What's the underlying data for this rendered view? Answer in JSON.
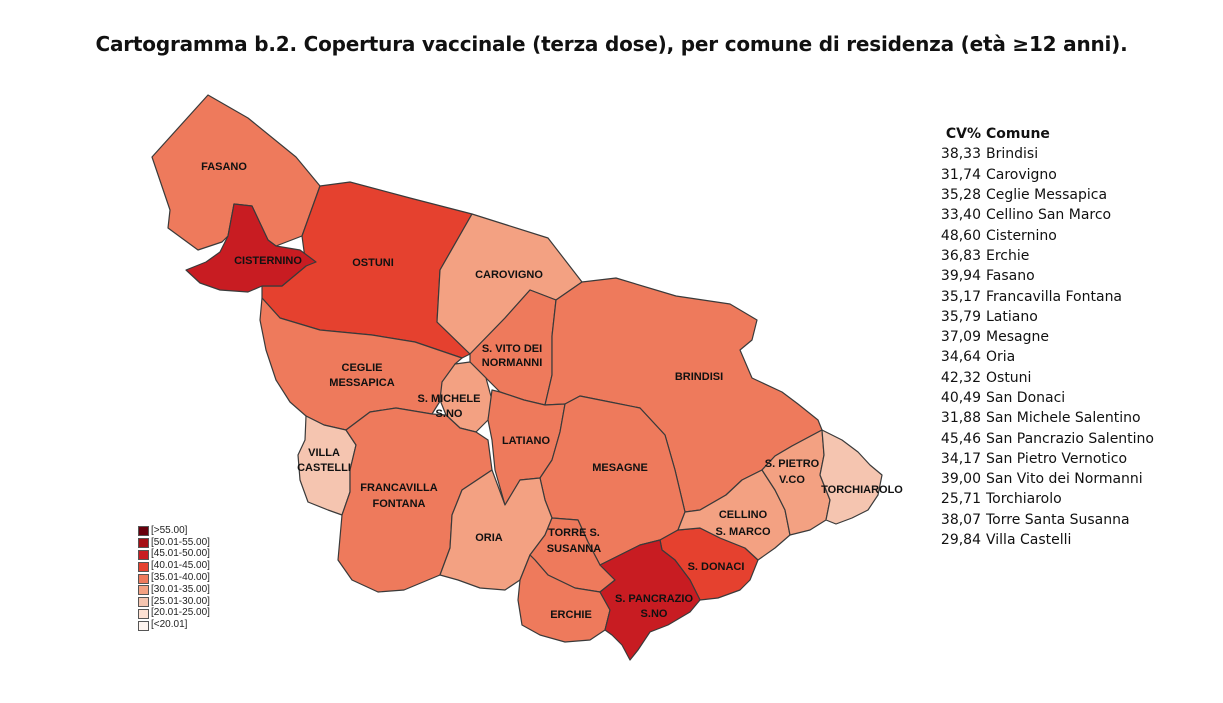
{
  "title": "Cartogramma b.2. Copertura vaccinale (terza dose), per comune di residenza (età ≥12 anni).",
  "colors": {
    "c25_30": "#f5c5b0",
    "c30_35": "#f3a182",
    "c35_40": "#ee7a5c",
    "c40_45": "#e5412f",
    "c45_50": "#c81c22",
    "c50_55": "#a50f15",
    "c55": "#67000d",
    "c20_25": "#fde0d2",
    "c_lt20": "#fff5f0"
  },
  "map_labels": {
    "fasano": "FASANO",
    "cisternino": "CISTERNINO",
    "ostuni": "OSTUNI",
    "carovigno": "CAROVIGNO",
    "svito_1": "S. VITO DEI",
    "svito_2": "NORMANNI",
    "brindisi": "BRINDISI",
    "ceglie_1": "CEGLIE",
    "ceglie_2": "MESSAPICA",
    "smichele_1": "S. MICHELE",
    "smichele_2": "S.NO",
    "latiano": "LATIANO",
    "villa_1": "VILLA",
    "villa_2": "CASTELLI",
    "francavilla_1": "FRANCAVILLA",
    "francavilla_2": "FONTANA",
    "mesagne": "MESAGNE",
    "spietro_1": "S. PIETRO",
    "spietro_2": "V.CO",
    "torchiarolo": "TORCHIAROLO",
    "cellino_1": "CELLINO",
    "cellino_2": "S. MARCO",
    "oria": "ORIA",
    "torre_1": "TORRE S.",
    "torre_2": "SUSANNA",
    "sdonaci": "S. DONACI",
    "spancrazio_1": "S. PANCRAZIO",
    "spancrazio_2": "S.NO",
    "erchie": "ERCHIE"
  },
  "legend": [
    {
      "label": "[>55.00]",
      "color": "#67000d"
    },
    {
      "label": "[50.01-55.00]",
      "color": "#a50f15"
    },
    {
      "label": "[45.01-50.00]",
      "color": "#c81c22"
    },
    {
      "label": "[40.01-45.00]",
      "color": "#e5412f"
    },
    {
      "label": "[35.01-40.00]",
      "color": "#ee7a5c"
    },
    {
      "label": "[30.01-35.00]",
      "color": "#f3a182"
    },
    {
      "label": "[25.01-30.00]",
      "color": "#f5c5b0"
    },
    {
      "label": "[20.01-25.00]",
      "color": "#fde0d2"
    },
    {
      "label": "[<20.01]",
      "color": "#fff5f0"
    }
  ],
  "table": {
    "header_cv": "CV%",
    "header_name": "Comune",
    "rows": [
      {
        "cv": "38,33",
        "name": "Brindisi"
      },
      {
        "cv": "31,74",
        "name": "Carovigno"
      },
      {
        "cv": "35,28",
        "name": "Ceglie Messapica"
      },
      {
        "cv": "33,40",
        "name": "Cellino San Marco"
      },
      {
        "cv": "48,60",
        "name": "Cisternino"
      },
      {
        "cv": "36,83",
        "name": "Erchie"
      },
      {
        "cv": "39,94",
        "name": "Fasano"
      },
      {
        "cv": "35,17",
        "name": "Francavilla Fontana"
      },
      {
        "cv": "35,79",
        "name": "Latiano"
      },
      {
        "cv": "37,09",
        "name": "Mesagne"
      },
      {
        "cv": "34,64",
        "name": "Oria"
      },
      {
        "cv": "42,32",
        "name": "Ostuni"
      },
      {
        "cv": "40,49",
        "name": "San Donaci"
      },
      {
        "cv": "31,88",
        "name": "San Michele Salentino"
      },
      {
        "cv": "45,46",
        "name": "San Pancrazio Salentino"
      },
      {
        "cv": "34,17",
        "name": "San Pietro Vernotico"
      },
      {
        "cv": "39,00",
        "name": "San Vito dei Normanni"
      },
      {
        "cv": "25,71",
        "name": "Torchiarolo"
      },
      {
        "cv": "38,07",
        "name": "Torre Santa Susanna"
      },
      {
        "cv": "29,84",
        "name": "Villa Castelli"
      }
    ]
  }
}
